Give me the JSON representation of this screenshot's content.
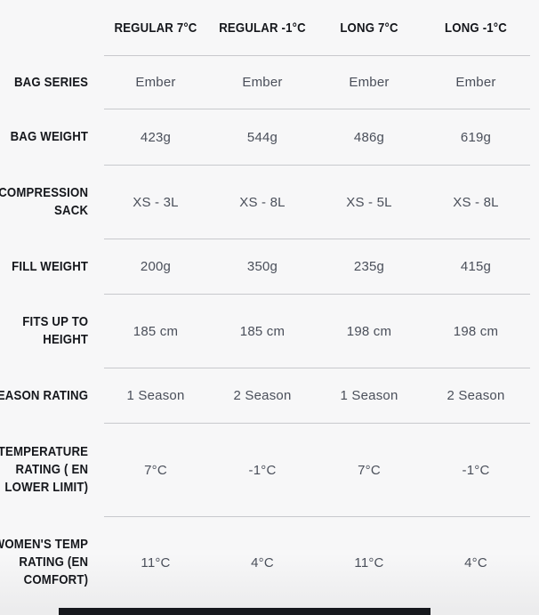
{
  "table": {
    "columns": [
      "REGULAR 7°C",
      "REGULAR -1°C",
      "LONG 7°C",
      "LONG -1°C"
    ],
    "rows": [
      {
        "label": "BAG SERIES",
        "values": [
          "Ember",
          "Ember",
          "Ember",
          "Ember"
        ]
      },
      {
        "label": "BAG WEIGHT",
        "values": [
          "423g",
          "544g",
          "486g",
          "619g"
        ]
      },
      {
        "label": "COMPRESSION\nSACK",
        "values": [
          "XS - 3L",
          "XS - 8L",
          "XS - 5L",
          "XS - 8L"
        ]
      },
      {
        "label": "FILL WEIGHT",
        "values": [
          "200g",
          "350g",
          "235g",
          "415g"
        ]
      },
      {
        "label": "FITS UP TO\nHEIGHT",
        "values": [
          "185 cm",
          "185 cm",
          "198 cm",
          "198 cm"
        ]
      },
      {
        "label": "SEASON RATING",
        "values": [
          "1 Season",
          "2 Season",
          "1 Season",
          "2 Season"
        ]
      },
      {
        "label": "TEMPERATURE\nRATING ( EN\nLOWER LIMIT)",
        "values": [
          "7°C",
          "-1°C",
          "7°C",
          "-1°C"
        ]
      },
      {
        "label": "WOMEN'S TEMP\nRATING (EN\nCOMFORT)",
        "values": [
          "11°C",
          "4°C",
          "11°C",
          "4°C"
        ]
      }
    ]
  },
  "colors": {
    "background": "#f7f7f8",
    "heading_text": "#15171c",
    "value_text": "#4a4f5a",
    "divider": "#c8c9cd",
    "scrollbar_thumb": "#16181d",
    "scrollbar_track": "#ececed"
  }
}
